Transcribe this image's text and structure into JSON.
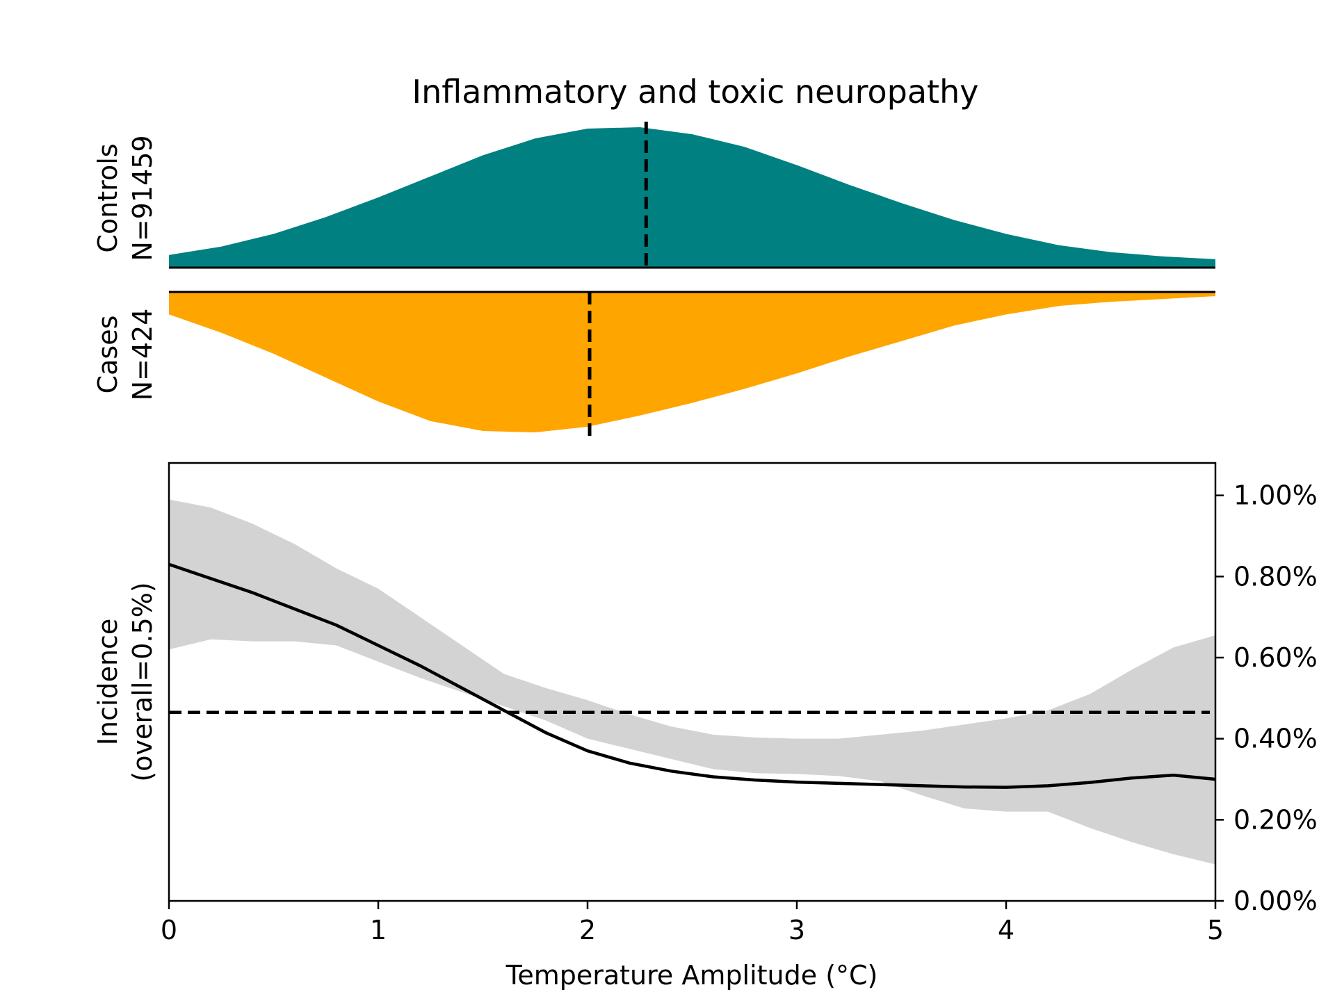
{
  "chart_data": {
    "type": "area",
    "title": "Inflammatory and toxic neuropathy",
    "colors": {
      "controls": "#008080",
      "cases": "#FFA500",
      "ci_band": "#D3D3D3",
      "line": "#000000"
    },
    "controls": {
      "label_line1": "Controls",
      "label_line2": "N=91459",
      "median": 2.28,
      "density_x": [
        0,
        0.25,
        0.5,
        0.75,
        1.0,
        1.25,
        1.5,
        1.75,
        2.0,
        2.25,
        2.5,
        2.75,
        3.0,
        3.25,
        3.5,
        3.75,
        4.0,
        4.25,
        4.5,
        4.75,
        5.0
      ],
      "density_y": [
        0.09,
        0.15,
        0.24,
        0.36,
        0.5,
        0.65,
        0.8,
        0.92,
        0.99,
        1.0,
        0.95,
        0.86,
        0.73,
        0.59,
        0.46,
        0.34,
        0.24,
        0.16,
        0.11,
        0.08,
        0.06
      ]
    },
    "cases": {
      "label_line1": "Cases",
      "label_line2": "N=424",
      "median": 2.01,
      "density_x": [
        0,
        0.25,
        0.5,
        0.75,
        1.0,
        1.25,
        1.5,
        1.75,
        2.0,
        2.25,
        2.5,
        2.75,
        3.0,
        3.25,
        3.5,
        3.75,
        4.0,
        4.25,
        4.5,
        4.75,
        5.0
      ],
      "density_y": [
        0.16,
        0.29,
        0.44,
        0.61,
        0.78,
        0.92,
        0.99,
        1.0,
        0.96,
        0.88,
        0.79,
        0.69,
        0.58,
        0.46,
        0.35,
        0.24,
        0.16,
        0.1,
        0.07,
        0.05,
        0.03
      ]
    },
    "incidence": {
      "ylabel_line1": "Incidence",
      "ylabel_line2": "(overall=0.5%)",
      "xlabel": "Temperature Amplitude (°C)",
      "xlim": [
        0,
        5
      ],
      "ylim": [
        0,
        1.08
      ],
      "xticks": [
        0,
        1,
        2,
        3,
        4,
        5
      ],
      "xtick_labels": [
        "0",
        "1",
        "2",
        "3",
        "4",
        "5"
      ],
      "yticks": [
        0,
        0.2,
        0.4,
        0.6,
        0.8,
        1.0
      ],
      "ytick_labels": [
        "0.00%",
        "0.20%",
        "0.40%",
        "0.60%",
        "0.80%",
        "1.00%"
      ],
      "overall_rate": 0.465,
      "x": [
        0,
        0.2,
        0.4,
        0.6,
        0.8,
        1.0,
        1.2,
        1.4,
        1.6,
        1.8,
        2.0,
        2.2,
        2.4,
        2.6,
        2.8,
        3.0,
        3.2,
        3.4,
        3.6,
        3.8,
        4.0,
        4.2,
        4.4,
        4.6,
        4.8,
        5.0
      ],
      "y": [
        0.83,
        0.795,
        0.76,
        0.72,
        0.68,
        0.63,
        0.58,
        0.525,
        0.47,
        0.415,
        0.37,
        0.34,
        0.32,
        0.306,
        0.298,
        0.293,
        0.29,
        0.287,
        0.284,
        0.281,
        0.28,
        0.284,
        0.292,
        0.303,
        0.31,
        0.3
      ],
      "lower": [
        0.62,
        0.645,
        0.64,
        0.64,
        0.63,
        0.59,
        0.55,
        0.515,
        0.48,
        0.445,
        0.4,
        0.375,
        0.35,
        0.325,
        0.315,
        0.313,
        0.308,
        0.295,
        0.26,
        0.228,
        0.22,
        0.22,
        0.18,
        0.145,
        0.115,
        0.09
      ],
      "upper": [
        0.99,
        0.97,
        0.93,
        0.88,
        0.82,
        0.77,
        0.7,
        0.63,
        0.56,
        0.525,
        0.495,
        0.46,
        0.43,
        0.41,
        0.403,
        0.4,
        0.4,
        0.41,
        0.42,
        0.435,
        0.45,
        0.47,
        0.51,
        0.57,
        0.625,
        0.655
      ]
    }
  }
}
